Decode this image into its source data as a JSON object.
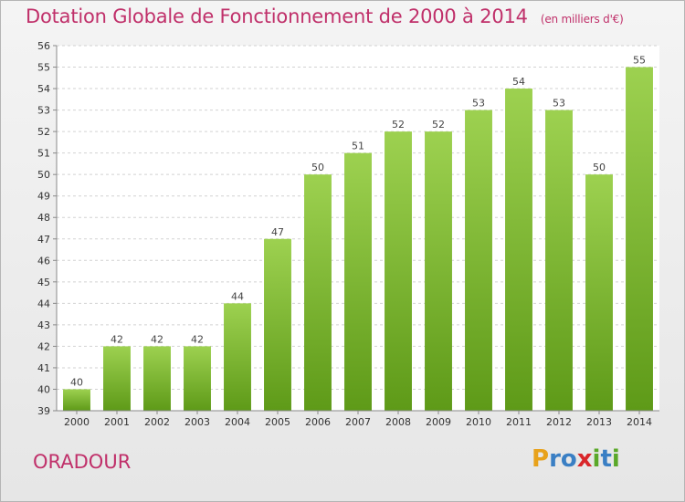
{
  "header": {
    "title": "Dotation Globale de Fonctionnement de 2000 à 2014",
    "unit": "(en milliers d'€)"
  },
  "commune": "ORADOUR",
  "logo": {
    "text": "Proxiti",
    "letters": [
      {
        "ch": "P",
        "color": "#e8a21b"
      },
      {
        "ch": "r",
        "color": "#3a7fc4"
      },
      {
        "ch": "o",
        "color": "#3a7fc4"
      },
      {
        "ch": "x",
        "color": "#d9262a"
      },
      {
        "ch": "i",
        "color": "#5aa829"
      },
      {
        "ch": "t",
        "color": "#3a7fc4"
      },
      {
        "ch": "i",
        "color": "#5aa829"
      }
    ]
  },
  "chart_data": {
    "type": "bar",
    "title": "Dotation Globale de Fonctionnement de 2000 à 2014",
    "subtitle": "(en milliers d'€)",
    "categories": [
      "2000",
      "2001",
      "2002",
      "2003",
      "2004",
      "2005",
      "2006",
      "2007",
      "2008",
      "2009",
      "2010",
      "2011",
      "2012",
      "2013",
      "2014"
    ],
    "values": [
      40,
      42,
      42,
      42,
      44,
      47,
      50,
      51,
      52,
      52,
      53,
      54,
      53,
      50,
      55
    ],
    "ylim": [
      39,
      56
    ],
    "yticks": [
      39,
      40,
      41,
      42,
      43,
      44,
      45,
      46,
      47,
      48,
      49,
      50,
      51,
      52,
      53,
      54,
      55,
      56
    ],
    "grid": true,
    "bar_color_top": "#9dd150",
    "bar_color_bottom": "#5e9a18"
  }
}
